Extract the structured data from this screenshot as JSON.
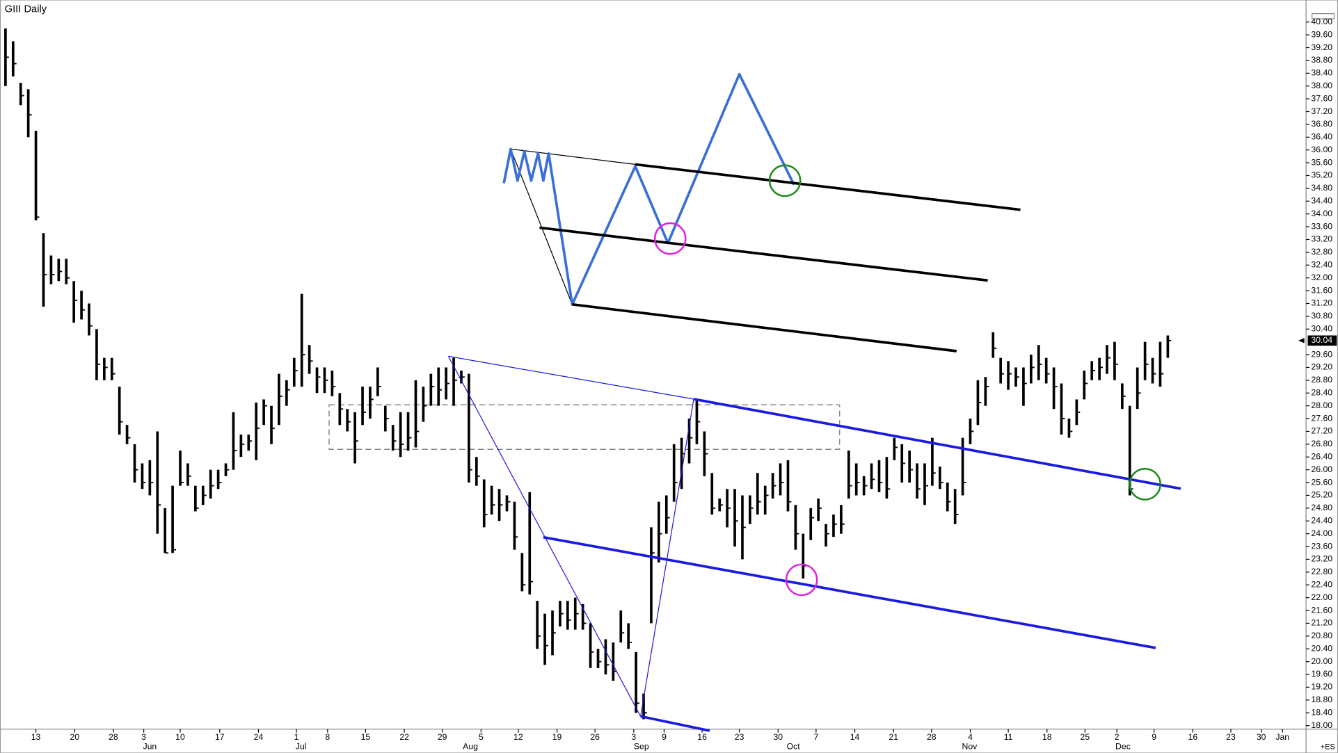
{
  "chart_data": {
    "type": "ohlc",
    "title": "GIII Daily",
    "footer": "+ES",
    "color": "#000000",
    "bars": {
      "high": [
        39.8,
        39.4,
        38.1,
        37.9,
        36.6,
        33.4,
        32.7,
        32.6,
        32.6,
        31.9,
        31.6,
        31.2,
        30.4,
        29.5,
        29.5,
        28.6,
        27.4,
        26.8,
        26.2,
        26.3,
        27.2,
        24.8,
        25.5,
        26.6,
        26.2,
        25.5,
        25.5,
        26.0,
        26.0,
        26.2,
        27.8,
        27.1,
        27.1,
        28.1,
        28.2,
        28.0,
        29.0,
        28.8,
        29.5,
        31.5,
        29.9,
        29.2,
        29.2,
        29.1,
        28.4,
        27.9,
        27.8,
        28.6,
        28.6,
        29.2,
        28.0,
        27.4,
        27.8,
        27.8,
        28.8,
        28.6,
        29.0,
        29.2,
        29.2,
        29.5,
        29.1,
        29.0,
        26.4,
        25.7,
        25.5,
        25.4,
        25.2,
        25.0,
        23.4,
        25.3,
        21.9,
        21.5,
        21.6,
        21.9,
        21.9,
        22.0,
        21.8,
        21.2,
        20.4,
        20.7,
        20.6,
        21.6,
        21.2,
        20.3,
        19.0,
        24.2,
        25.0,
        25.2,
        26.8,
        27.0,
        27.6,
        28.2,
        27.2,
        25.9,
        25.1,
        25.4,
        25.4,
        25.2,
        25.2,
        25.9,
        25.5,
        25.9,
        26.2,
        26.3,
        24.9,
        24.0,
        24.8,
        25.1,
        24.3,
        24.6,
        24.9,
        26.6,
        26.2,
        25.8,
        26.2,
        26.3,
        26.4,
        27.0,
        26.8,
        26.6,
        26.2,
        26.2,
        27.0,
        26.1,
        25.6,
        25.4,
        27.0,
        27.6,
        28.8,
        28.9,
        30.3,
        29.5,
        29.4,
        29.2,
        29.2,
        29.6,
        29.9,
        29.5,
        29.2,
        28.7,
        27.6,
        28.2,
        29.1,
        29.4,
        29.5,
        29.9,
        30.0,
        28.7,
        28.0,
        29.2,
        30.0,
        29.5,
        30.0,
        30.2
      ],
      "low": [
        38.0,
        38.3,
        37.4,
        36.4,
        33.8,
        31.1,
        31.8,
        31.9,
        31.8,
        30.6,
        30.7,
        30.2,
        28.8,
        28.8,
        28.8,
        27.1,
        26.8,
        25.6,
        25.4,
        25.2,
        24.0,
        23.4,
        23.4,
        25.5,
        25.5,
        24.7,
        24.9,
        25.1,
        25.4,
        25.8,
        26.0,
        26.4,
        26.6,
        26.3,
        27.4,
        26.8,
        27.4,
        28.0,
        28.6,
        28.6,
        29.0,
        28.4,
        28.4,
        28.3,
        27.4,
        27.2,
        26.2,
        27.4,
        27.6,
        28.3,
        27.2,
        26.6,
        26.4,
        26.6,
        26.7,
        27.5,
        28.0,
        28.0,
        28.2,
        28.0,
        28.7,
        25.6,
        25.5,
        24.2,
        24.6,
        24.4,
        24.7,
        23.5,
        22.2,
        22.1,
        20.4,
        19.9,
        20.2,
        21.1,
        21.0,
        21.0,
        21.0,
        19.8,
        19.8,
        19.6,
        19.4,
        20.6,
        20.4,
        18.4,
        18.2,
        21.2,
        23.1,
        24.0,
        25.0,
        25.4,
        26.2,
        26.8,
        25.8,
        24.6,
        24.7,
        24.2,
        23.6,
        23.2,
        24.3,
        24.6,
        24.6,
        25.1,
        25.2,
        24.7,
        23.5,
        22.6,
        23.8,
        24.4,
        23.6,
        23.9,
        24.0,
        25.1,
        25.2,
        25.2,
        25.4,
        25.3,
        25.1,
        26.3,
        25.6,
        25.6,
        25.1,
        24.9,
        25.5,
        25.4,
        24.7,
        24.3,
        25.2,
        26.8,
        27.4,
        28.0,
        29.5,
        28.7,
        28.5,
        28.6,
        28.0,
        28.7,
        28.8,
        28.7,
        27.9,
        27.1,
        27.0,
        27.4,
        28.2,
        28.8,
        28.8,
        29.0,
        28.8,
        27.9,
        25.2,
        27.9,
        28.8,
        28.7,
        28.6,
        29.5
      ],
      "close": [
        38.9,
        38.7,
        37.7,
        37.1,
        33.9,
        32.1,
        32.1,
        32.2,
        32.0,
        31.3,
        31.0,
        30.5,
        29.3,
        29.2,
        29.0,
        27.5,
        27.0,
        26.0,
        25.6,
        25.6,
        24.9,
        23.4,
        23.5,
        25.6,
        25.8,
        24.8,
        25.2,
        25.5,
        25.6,
        26.0,
        26.6,
        26.8,
        26.9,
        27.3,
        28.0,
        27.3,
        28.3,
        28.5,
        29.1,
        29.6,
        29.4,
        28.9,
        28.8,
        28.6,
        27.9,
        27.5,
        26.9,
        27.8,
        28.2,
        28.6,
        27.6,
        26.9,
        26.8,
        27.0,
        27.2,
        28.0,
        28.6,
        28.5,
        28.7,
        28.8,
        28.9,
        26.0,
        25.8,
        24.6,
        24.9,
        24.9,
        25.0,
        23.9,
        22.4,
        22.5,
        20.8,
        20.5,
        20.9,
        21.5,
        21.3,
        21.5,
        21.2,
        20.3,
        20.0,
        19.9,
        19.7,
        20.9,
        20.6,
        18.7,
        18.4,
        23.4,
        24.0,
        24.5,
        25.6,
        26.5,
        27.0,
        27.5,
        26.5,
        24.8,
        24.9,
        24.8,
        24.4,
        24.2,
        24.8,
        25.0,
        25.2,
        25.5,
        25.6,
        25.0,
        24.0,
        23.0,
        24.5,
        24.8,
        24.0,
        24.3,
        24.3,
        25.5,
        25.6,
        25.5,
        25.7,
        25.6,
        25.4,
        26.7,
        26.2,
        26.0,
        25.4,
        25.5,
        25.9,
        25.6,
        25.0,
        24.6,
        25.6,
        27.2,
        28.1,
        28.6,
        29.8,
        29.0,
        29.0,
        28.9,
        28.7,
        29.2,
        29.3,
        29.0,
        28.6,
        27.6,
        27.2,
        27.8,
        28.7,
        29.1,
        29.2,
        29.5,
        29.3,
        28.3,
        25.4,
        28.4,
        29.3,
        29.0,
        29.0,
        30.04
      ]
    },
    "last_price": {
      "value": 30.04,
      "label": "30.04"
    },
    "xlim": [
      -0.674,
      171.2
    ],
    "ylim": [
      17.89,
      40.21
    ],
    "xticks": [
      {
        "value": 4.0,
        "label": "13"
      },
      {
        "value": 9.1,
        "label": "20"
      },
      {
        "value": 14.2,
        "label": "28"
      },
      {
        "value": 18.2,
        "label": "3"
      },
      {
        "value": 23.0,
        "label": "10"
      },
      {
        "value": 28.2,
        "label": "17"
      },
      {
        "value": 33.3,
        "label": "24"
      },
      {
        "value": 38.3,
        "label": "1"
      },
      {
        "value": 42.4,
        "label": "8"
      },
      {
        "value": 47.4,
        "label": "15"
      },
      {
        "value": 52.5,
        "label": "22"
      },
      {
        "value": 57.5,
        "label": "29"
      },
      {
        "value": 62.6,
        "label": "5"
      },
      {
        "value": 67.5,
        "label": "12"
      },
      {
        "value": 72.6,
        "label": "19"
      },
      {
        "value": 77.6,
        "label": "26"
      },
      {
        "value": 82.7,
        "label": "3"
      },
      {
        "value": 86.7,
        "label": "9"
      },
      {
        "value": 91.7,
        "label": "16"
      },
      {
        "value": 96.6,
        "label": "23"
      },
      {
        "value": 101.7,
        "label": "30"
      },
      {
        "value": 106.7,
        "label": "7"
      },
      {
        "value": 111.8,
        "label": "14"
      },
      {
        "value": 116.9,
        "label": "21"
      },
      {
        "value": 121.9,
        "label": "28"
      },
      {
        "value": 127.0,
        "label": "4"
      },
      {
        "value": 132.0,
        "label": "11"
      },
      {
        "value": 137.1,
        "label": "18"
      },
      {
        "value": 142.1,
        "label": "25"
      },
      {
        "value": 146.3,
        "label": "2"
      },
      {
        "value": 151.2,
        "label": "9"
      },
      {
        "value": 156.3,
        "label": "16"
      },
      {
        "value": 161.3,
        "label": "23"
      },
      {
        "value": 165.3,
        "label": "30"
      },
      {
        "value": 168.1,
        "label": "Jan"
      }
    ],
    "month_ticks": [
      {
        "value": 19.0,
        "label": "Jun"
      },
      {
        "value": 38.9,
        "label": "Jul"
      },
      {
        "value": 61.2,
        "label": "Aug"
      },
      {
        "value": 83.7,
        "label": "Sep"
      },
      {
        "value": 103.7,
        "label": "Oct"
      },
      {
        "value": 126.9,
        "label": "Nov"
      },
      {
        "value": 147.1,
        "label": "Dec"
      }
    ],
    "yticks": [
      {
        "value": 18,
        "label": "18.00"
      },
      {
        "value": 18.4,
        "label": "18.40"
      },
      {
        "value": 18.8,
        "label": "18.80"
      },
      {
        "value": 19.2,
        "label": "19.20"
      },
      {
        "value": 19.6,
        "label": "19.60"
      },
      {
        "value": 20,
        "label": "20.00"
      },
      {
        "value": 20.4,
        "label": "20.40"
      },
      {
        "value": 20.8,
        "label": "20.80"
      },
      {
        "value": 21.2,
        "label": "21.20"
      },
      {
        "value": 21.6,
        "label": "21.60"
      },
      {
        "value": 22,
        "label": "22.00"
      },
      {
        "value": 22.4,
        "label": "22.40"
      },
      {
        "value": 22.8,
        "label": "22.80"
      },
      {
        "value": 23.2,
        "label": "23.20"
      },
      {
        "value": 23.6,
        "label": "23.60"
      },
      {
        "value": 24,
        "label": "24.00"
      },
      {
        "value": 24.4,
        "label": "24.40"
      },
      {
        "value": 24.8,
        "label": "24.80"
      },
      {
        "value": 25.2,
        "label": "25.20"
      },
      {
        "value": 25.6,
        "label": "25.60"
      },
      {
        "value": 26,
        "label": "26.00"
      },
      {
        "value": 26.4,
        "label": "26.40"
      },
      {
        "value": 26.8,
        "label": "26.80"
      },
      {
        "value": 27.2,
        "label": "27.20"
      },
      {
        "value": 27.6,
        "label": "27.60"
      },
      {
        "value": 28,
        "label": "28.00"
      },
      {
        "value": 28.4,
        "label": "28.40"
      },
      {
        "value": 28.8,
        "label": "28.80"
      },
      {
        "value": 29.2,
        "label": "29.20"
      },
      {
        "value": 29.6,
        "label": "29.60"
      },
      {
        "value": 30.4,
        "label": "30.40"
      },
      {
        "value": 30.8,
        "label": "30.80"
      },
      {
        "value": 31.2,
        "label": "31.20"
      },
      {
        "value": 31.6,
        "label": "31.60"
      },
      {
        "value": 32,
        "label": "32.00"
      },
      {
        "value": 32.4,
        "label": "32.40"
      },
      {
        "value": 32.8,
        "label": "32.80"
      },
      {
        "value": 33.2,
        "label": "33.20"
      },
      {
        "value": 33.6,
        "label": "33.60"
      },
      {
        "value": 34,
        "label": "34.00"
      },
      {
        "value": 34.4,
        "label": "34.40"
      },
      {
        "value": 34.8,
        "label": "34.80"
      },
      {
        "value": 35.2,
        "label": "35.20"
      },
      {
        "value": 35.6,
        "label": "35.60"
      },
      {
        "value": 36,
        "label": "36.00"
      },
      {
        "value": 36.4,
        "label": "36.40"
      },
      {
        "value": 36.8,
        "label": "36.80"
      },
      {
        "value": 37.2,
        "label": "37.20"
      },
      {
        "value": 37.6,
        "label": "37.60"
      },
      {
        "value": 38,
        "label": "38.00"
      },
      {
        "value": 38.4,
        "label": "38.40"
      },
      {
        "value": 38.8,
        "label": "38.80"
      },
      {
        "value": 39.2,
        "label": "39.20"
      },
      {
        "value": 39.6,
        "label": "39.60"
      },
      {
        "value": 40,
        "label": "40.00"
      }
    ],
    "lines": [
      {
        "color": "#3a6fd8",
        "points": [
          [
            65.6,
            34.96
          ],
          [
            66.5,
            36.03
          ],
          [
            67.4,
            35.04
          ],
          [
            68.3,
            35.95
          ],
          [
            69.2,
            35.04
          ],
          [
            70.1,
            35.89
          ],
          [
            70.8,
            35.04
          ],
          [
            71.5,
            35.89
          ],
          [
            74.6,
            31.17
          ],
          [
            82.9,
            35.49
          ],
          [
            87.2,
            33.09
          ],
          [
            96.6,
            38.37
          ],
          [
            103.8,
            34.91
          ]
        ]
      },
      {
        "color": "#000000",
        "points": [
          [
            82.9,
            35.55
          ],
          [
            133.6,
            34.13
          ]
        ]
      },
      {
        "color": "#000000",
        "points": [
          [
            70.3,
            33.57
          ],
          [
            129.3,
            31.92
          ]
        ]
      },
      {
        "color": "#000000",
        "points": [
          [
            74.6,
            31.17
          ],
          [
            125.2,
            29.71
          ]
        ]
      },
      {
        "color": "#1a1ae0",
        "points": [
          [
            90.6,
            28.21
          ],
          [
            154.7,
            25.41
          ]
        ]
      },
      {
        "color": "#1a1ae0",
        "points": [
          [
            70.8,
            23.89
          ],
          [
            151.4,
            20.43
          ]
        ]
      },
      {
        "color": "#1a1ae0",
        "points": [
          [
            83.6,
            18.29
          ],
          [
            92.7,
            17.84
          ]
        ]
      }
    ],
    "guides": [
      {
        "color": "#000000",
        "points": [
          [
            66.5,
            36.03
          ],
          [
            82.9,
            35.55
          ]
        ]
      },
      {
        "color": "#000000",
        "points": [
          [
            66.5,
            36.03
          ],
          [
            74.6,
            31.17
          ]
        ]
      },
      {
        "color": "#1a1ae0",
        "points": [
          [
            58.3,
            29.55
          ],
          [
            83.6,
            18.29
          ]
        ]
      },
      {
        "color": "#1a1ae0",
        "points": [
          [
            83.6,
            18.29
          ],
          [
            90.6,
            28.21
          ]
        ]
      },
      {
        "color": "#1a1ae0",
        "points": [
          [
            58.3,
            29.55
          ],
          [
            90.6,
            28.21
          ]
        ]
      }
    ],
    "circles": [
      {
        "color": "#1a8a1a",
        "center": [
          102.6,
          35.04
        ]
      },
      {
        "color": "#e020e0",
        "center": [
          87.5,
          33.23
        ]
      },
      {
        "color": "#e020e0",
        "center": [
          104.8,
          22.56
        ]
      },
      {
        "color": "#1a8a1a",
        "center": [
          150.0,
          25.55
        ]
      }
    ],
    "range_box": {
      "color": "#888888",
      "x": [
        42.6,
        109.8
      ],
      "y": [
        26.64,
        28.03
      ]
    }
  }
}
